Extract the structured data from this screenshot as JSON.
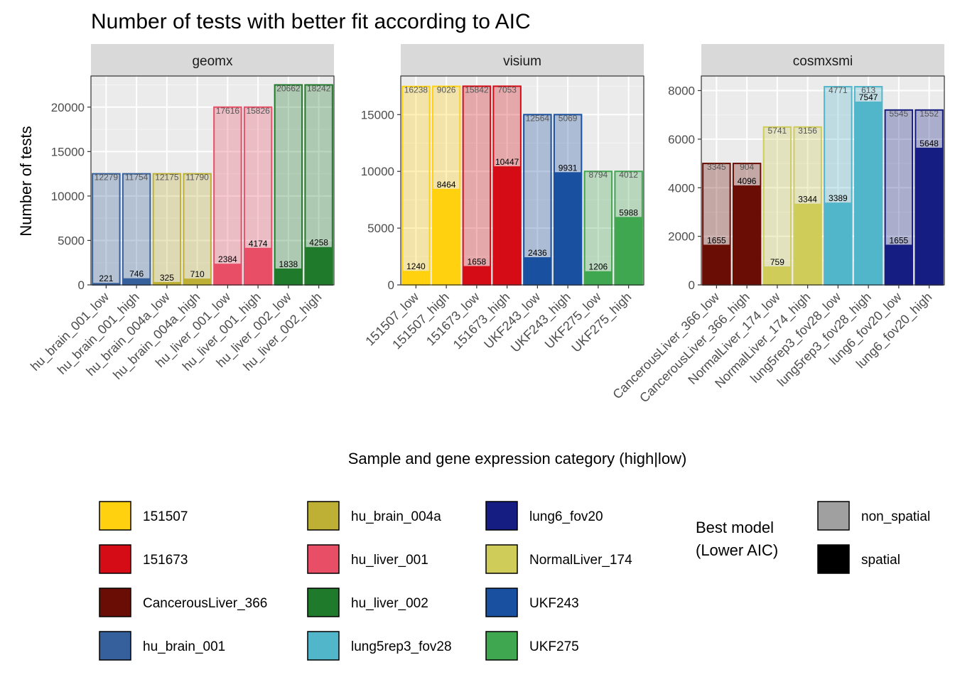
{
  "chart_data": {
    "type": "bar",
    "title": "Number of tests with better fit according to AIC",
    "xlabel": "Sample and gene expression category (high|low)",
    "ylabel": "Number of tests",
    "grid": true,
    "facets": [
      {
        "name": "geomx",
        "ylim": [
          0,
          23500
        ],
        "yticks": [
          0,
          5000,
          10000,
          15000,
          20000
        ],
        "bars": [
          {
            "category": "hu_brain_001_low",
            "sample": "hu_brain_001",
            "spatial": 221,
            "non_spatial": 12279
          },
          {
            "category": "hu_brain_001_high",
            "sample": "hu_brain_001",
            "spatial": 746,
            "non_spatial": 11754
          },
          {
            "category": "hu_brain_004a_low",
            "sample": "hu_brain_004a",
            "spatial": 325,
            "non_spatial": 12175
          },
          {
            "category": "hu_brain_004a_high",
            "sample": "hu_brain_004a",
            "spatial": 710,
            "non_spatial": 11790
          },
          {
            "category": "hu_liver_001_low",
            "sample": "hu_liver_001",
            "spatial": 2384,
            "non_spatial": 17616
          },
          {
            "category": "hu_liver_001_high",
            "sample": "hu_liver_001",
            "spatial": 4174,
            "non_spatial": 15826
          },
          {
            "category": "hu_liver_002_low",
            "sample": "hu_liver_002",
            "spatial": 1838,
            "non_spatial": 20662
          },
          {
            "category": "hu_liver_002_high",
            "sample": "hu_liver_002",
            "spatial": 4258,
            "non_spatial": 18242
          }
        ]
      },
      {
        "name": "visium",
        "ylim": [
          0,
          18400
        ],
        "yticks": [
          0,
          5000,
          10000,
          15000
        ],
        "bars": [
          {
            "category": "151507_low",
            "sample": "151507",
            "spatial": 1240,
            "non_spatial": 16238
          },
          {
            "category": "151507_high",
            "sample": "151507",
            "spatial": 8464,
            "non_spatial": 9026
          },
          {
            "category": "151673_low",
            "sample": "151673",
            "spatial": 1658,
            "non_spatial": 15842
          },
          {
            "category": "151673_high",
            "sample": "151673",
            "spatial": 10447,
            "non_spatial": 7053
          },
          {
            "category": "UKF243_low",
            "sample": "UKF243",
            "spatial": 2436,
            "non_spatial": 12564
          },
          {
            "category": "UKF243_high",
            "sample": "UKF243",
            "spatial": 9931,
            "non_spatial": 5069
          },
          {
            "category": "UKF275_low",
            "sample": "UKF275",
            "spatial": 1206,
            "non_spatial": 8794
          },
          {
            "category": "UKF275_high",
            "sample": "UKF275",
            "spatial": 5988,
            "non_spatial": 4012
          }
        ]
      },
      {
        "name": "cosmxsmi",
        "ylim": [
          0,
          8600
        ],
        "yticks": [
          0,
          2000,
          4000,
          6000,
          8000
        ],
        "bars": [
          {
            "category": "CancerousLiver_366_low",
            "sample": "CancerousLiver_366",
            "spatial": 1655,
            "non_spatial": 3345
          },
          {
            "category": "CancerousLiver_366_high",
            "sample": "CancerousLiver_366",
            "spatial": 4096,
            "non_spatial": 904
          },
          {
            "category": "NormalLiver_174_low",
            "sample": "NormalLiver_174",
            "spatial": 759,
            "non_spatial": 5741
          },
          {
            "category": "NormalLiver_174_high",
            "sample": "NormalLiver_174",
            "spatial": 3344,
            "non_spatial": 3156
          },
          {
            "category": "lung5rep3_fov28_low",
            "sample": "lung5rep3_fov28",
            "spatial": 3389,
            "non_spatial": 4771
          },
          {
            "category": "lung5rep3_fov28_high",
            "sample": "lung5rep3_fov28",
            "spatial": 7547,
            "non_spatial": 613
          },
          {
            "category": "lung6_fov20_low",
            "sample": "lung6_fov20",
            "spatial": 1655,
            "non_spatial": 5545
          },
          {
            "category": "lung6_fov20_high",
            "sample": "lung6_fov20",
            "spatial": 5648,
            "non_spatial": 1552
          }
        ]
      }
    ],
    "sample_colors": {
      "151507": "#FFD10F",
      "151673": "#D50C15",
      "CancerousLiver_366": "#6A0E05",
      "hu_brain_001": "#36609B",
      "hu_brain_004a": "#BDB034",
      "hu_liver_001": "#E84F67",
      "hu_liver_002": "#207A2B",
      "lung5rep3_fov28": "#52B6CB",
      "lung6_fov20": "#151D83",
      "NormalLiver_174": "#CFCC5A",
      "UKF243": "#1A50A0",
      "UKF275": "#40A751"
    },
    "legend_samples": [
      "151507",
      "151673",
      "CancerousLiver_366",
      "hu_brain_001",
      "hu_brain_004a",
      "hu_liver_001",
      "hu_liver_002",
      "lung5rep3_fov28",
      "lung6_fov20",
      "NormalLiver_174",
      "UKF243",
      "UKF275"
    ],
    "model_legend": {
      "title_lines": [
        "Best model",
        "(Lower AIC)"
      ],
      "entries": [
        {
          "label": "non_spatial",
          "color": "#A0A0A0"
        },
        {
          "label": "spatial",
          "color": "#000000"
        }
      ]
    },
    "legend_position": "bottom"
  }
}
